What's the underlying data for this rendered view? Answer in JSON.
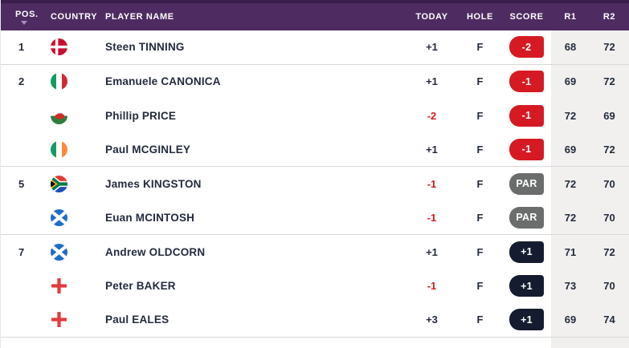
{
  "colors": {
    "header_bg": "#4e2b61",
    "header_top": "#3a1d4b",
    "under_par": "#d61a23",
    "par_grey": "#6a6d6c",
    "over_par": "#151c2f",
    "round_band": "#f1f0ee",
    "text_dark": "#232b3c",
    "border_grey": "#d8d8d8",
    "sort_arrow": "#a78fbc"
  },
  "table": {
    "columns": {
      "pos": "POS.",
      "country": "COUNTRY",
      "player": "PLAYER NAME",
      "today": "TODAY",
      "hole": "HOLE",
      "score": "SCORE",
      "r1": "R1",
      "r2": "R2"
    },
    "sort": {
      "column": "pos",
      "direction": "desc-arrow"
    },
    "rows": [
      {
        "pos": "1",
        "country": "denmark",
        "player": "Steen TINNING",
        "today": "+1",
        "hole": "F",
        "score": "-2",
        "score_variant": "under",
        "r1": "68",
        "r2": "72"
      },
      {
        "pos": "2",
        "country": "italy",
        "player": "Emanuele CANONICA",
        "today": "+1",
        "hole": "F",
        "score": "-1",
        "score_variant": "under",
        "r1": "69",
        "r2": "72"
      },
      {
        "pos": "",
        "country": "wales",
        "player": "Phillip PRICE",
        "today": "-2",
        "hole": "F",
        "score": "-1",
        "score_variant": "under",
        "r1": "72",
        "r2": "69"
      },
      {
        "pos": "",
        "country": "ireland",
        "player": "Paul MCGINLEY",
        "today": "+1",
        "hole": "F",
        "score": "-1",
        "score_variant": "under",
        "r1": "69",
        "r2": "72"
      },
      {
        "pos": "5",
        "country": "south-africa",
        "player": "James KINGSTON",
        "today": "-1",
        "hole": "F",
        "score": "PAR",
        "score_variant": "par",
        "r1": "72",
        "r2": "70"
      },
      {
        "pos": "",
        "country": "scotland",
        "player": "Euan MCINTOSH",
        "today": "-1",
        "hole": "F",
        "score": "PAR",
        "score_variant": "par",
        "r1": "72",
        "r2": "70"
      },
      {
        "pos": "7",
        "country": "scotland",
        "player": "Andrew OLDCORN",
        "today": "+1",
        "hole": "F",
        "score": "+1",
        "score_variant": "over",
        "r1": "71",
        "r2": "72"
      },
      {
        "pos": "",
        "country": "england",
        "player": "Peter BAKER",
        "today": "-1",
        "hole": "F",
        "score": "+1",
        "score_variant": "over",
        "r1": "73",
        "r2": "70"
      },
      {
        "pos": "",
        "country": "england",
        "player": "Paul EALES",
        "today": "+3",
        "hole": "F",
        "score": "+1",
        "score_variant": "over",
        "r1": "69",
        "r2": "74"
      }
    ],
    "group_breaks_after": [
      0,
      3,
      5,
      8
    ]
  }
}
